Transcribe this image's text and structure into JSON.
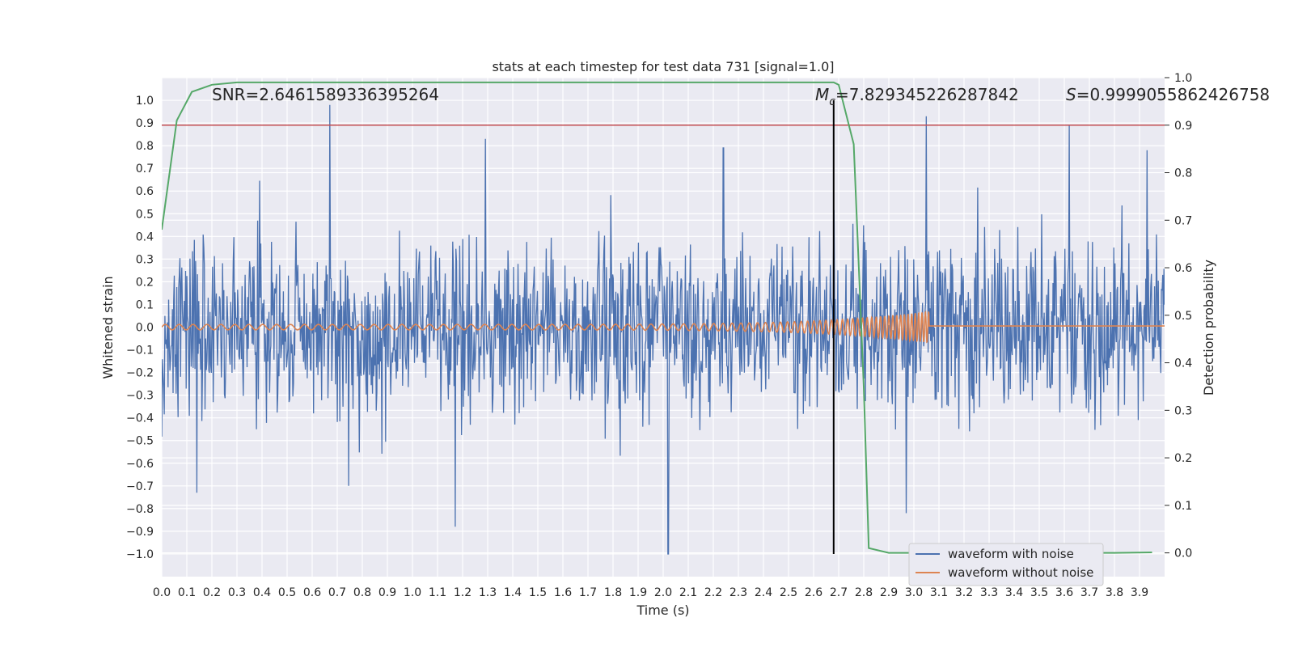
{
  "chart_data": {
    "type": "line",
    "title": "stats at each timestep for test data 731 [signal=1.0]",
    "xlabel": "Time (s)",
    "ylabel": "Whitened strain",
    "ylabel_right": "Detection probability",
    "xlim": [
      0.0,
      4.0
    ],
    "ylim": [
      -1.1,
      1.1
    ],
    "ylim_right": [
      -0.05,
      1.0
    ],
    "x_ticks": [
      "0.0",
      "0.1",
      "0.2",
      "0.3",
      "0.4",
      "0.5",
      "0.6",
      "0.7",
      "0.8",
      "0.9",
      "1.0",
      "1.1",
      "1.2",
      "1.3",
      "1.4",
      "1.5",
      "1.6",
      "1.7",
      "1.8",
      "1.9",
      "2.0",
      "2.1",
      "2.2",
      "2.3",
      "2.4",
      "2.5",
      "2.6",
      "2.7",
      "2.8",
      "2.9",
      "3.0",
      "3.1",
      "3.2",
      "3.3",
      "3.4",
      "3.5",
      "3.6",
      "3.7",
      "3.8",
      "3.9"
    ],
    "y_ticks": [
      "1.0",
      "0.9",
      "0.8",
      "0.7",
      "0.6",
      "0.5",
      "0.4",
      "0.3",
      "0.2",
      "0.1",
      "0.0",
      "−0.1",
      "−0.2",
      "−0.3",
      "−0.4",
      "−0.5",
      "−0.6",
      "−0.7",
      "−0.8",
      "−0.9",
      "−1.0"
    ],
    "y_ticks_right": [
      "1.0",
      "0.9",
      "0.8",
      "0.7",
      "0.6",
      "0.5",
      "0.4",
      "0.3",
      "0.2",
      "0.1",
      "0.0"
    ],
    "grid": true,
    "legend_position": "lower-right",
    "annotations": {
      "snr": "SNR=2.6461589336395264",
      "mc_symbol": "M",
      "mc_sub": "c",
      "mc_value": "=7.829345226287842",
      "s_symbol": "S",
      "s_value": "=0.9999055862426758"
    },
    "threshold_line": {
      "axis": "right",
      "value": 0.9,
      "color": "#c44e52"
    },
    "vertical_line": {
      "x": 2.68,
      "y_range": [
        -1.0,
        1.0
      ],
      "color": "#000000"
    },
    "series": [
      {
        "name": "waveform with noise",
        "color": "#4c72b0",
        "axis": "left",
        "description_peaks": [
          {
            "x": 0.67,
            "y": 0.98
          },
          {
            "x": 1.29,
            "y": 0.83
          },
          {
            "x": 2.24,
            "y": 0.79
          },
          {
            "x": 3.05,
            "y": 0.93
          },
          {
            "x": 3.62,
            "y": 0.89
          },
          {
            "x": 3.93,
            "y": 0.78
          },
          {
            "x": 2.02,
            "y": -1.0
          },
          {
            "x": 1.17,
            "y": -0.88
          },
          {
            "x": 0.14,
            "y": -0.73
          },
          {
            "x": 2.97,
            "y": -0.82
          }
        ]
      },
      {
        "name": "waveform without noise",
        "color": "#dd8452",
        "axis": "left",
        "chirp_end_x": 3.06,
        "amplitude_start": 0.012,
        "amplitude_end": 0.07
      },
      {
        "name": "",
        "color": "#55a868",
        "axis": "right",
        "x": [
          0.0,
          0.06,
          0.12,
          0.2,
          0.3,
          0.5,
          1.0,
          1.5,
          2.0,
          2.5,
          2.6,
          2.68,
          2.7,
          2.76,
          2.8,
          2.82,
          2.9,
          3.0,
          3.2,
          3.5,
          3.8,
          3.95
        ],
        "values": [
          0.68,
          0.91,
          0.97,
          0.985,
          0.99,
          0.99,
          0.99,
          0.99,
          0.99,
          0.99,
          0.99,
          0.99,
          0.985,
          0.86,
          0.35,
          0.01,
          0.0,
          0.0,
          0.0,
          0.0,
          0.0,
          0.001
        ]
      }
    ]
  }
}
